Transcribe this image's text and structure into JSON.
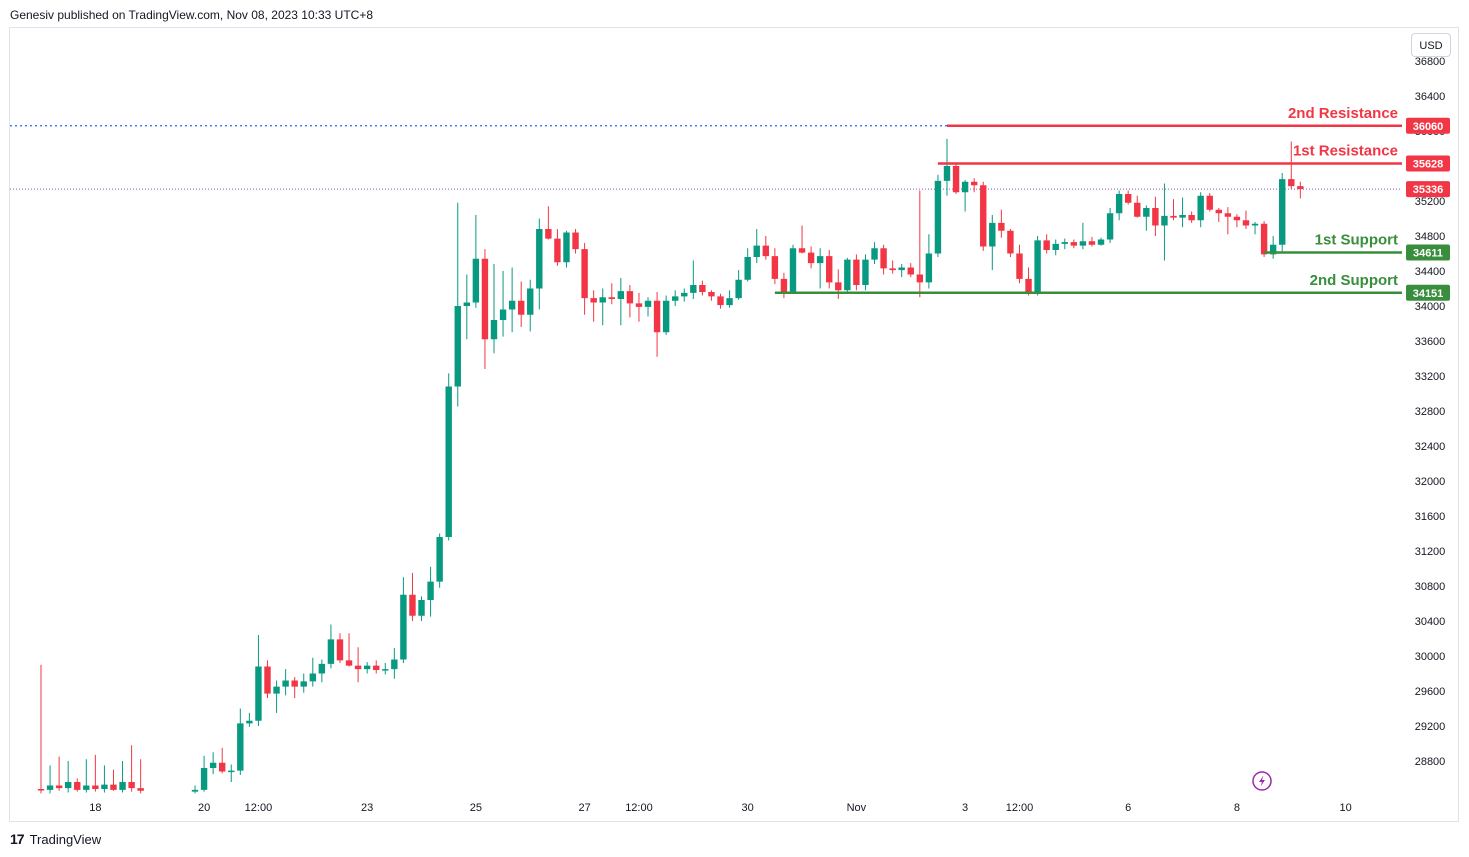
{
  "attribution": "Genesiv published on TradingView.com, Nov 08, 2023 10:33 UTC+8",
  "currency_button": "USD",
  "footer": {
    "brand": "TradingView",
    "logo_mark": "17"
  },
  "colors": {
    "up": "#089981",
    "down": "#f23645",
    "resistance": "#f23645",
    "support": "#388e3c",
    "last_price_line": "#7e57c2",
    "max_dotted_line": "#2962ff",
    "text": "#131722"
  },
  "chart_data": {
    "type": "candlestick",
    "title": "",
    "xlabel": "",
    "ylabel": "",
    "ylim": [
      28400,
      37000
    ],
    "y_ticks": [
      28800,
      29200,
      29600,
      30000,
      30400,
      30800,
      31200,
      31600,
      32000,
      32400,
      32800,
      33200,
      33600,
      34000,
      34400,
      34800,
      35200,
      35600,
      36000,
      36400,
      36800
    ],
    "x_ticks": [
      {
        "label": "18",
        "t": 6
      },
      {
        "label": "20",
        "t": 18
      },
      {
        "label": "12:00",
        "t": 24
      },
      {
        "label": "23",
        "t": 36
      },
      {
        "label": "25",
        "t": 48
      },
      {
        "label": "27",
        "t": 60
      },
      {
        "label": "12:00",
        "t": 66
      },
      {
        "label": "30",
        "t": 78
      },
      {
        "label": "Nov",
        "t": 90
      },
      {
        "label": "3",
        "t": 102
      },
      {
        "label": "12:00",
        "t": 108
      },
      {
        "label": "6",
        "t": 120
      },
      {
        "label": "8",
        "t": 132
      },
      {
        "label": "10",
        "t": 144
      }
    ],
    "candles": [
      {
        "t": 0,
        "o": 28480,
        "h": 29900,
        "l": 28430,
        "c": 28470
      },
      {
        "t": 1,
        "o": 28470,
        "h": 28750,
        "l": 28430,
        "c": 28520
      },
      {
        "t": 2,
        "o": 28520,
        "h": 28850,
        "l": 28460,
        "c": 28490
      },
      {
        "t": 3,
        "o": 28490,
        "h": 28800,
        "l": 28440,
        "c": 28560
      },
      {
        "t": 4,
        "o": 28560,
        "h": 28600,
        "l": 28450,
        "c": 28470
      },
      {
        "t": 5,
        "o": 28470,
        "h": 28820,
        "l": 28440,
        "c": 28520
      },
      {
        "t": 6,
        "o": 28520,
        "h": 28870,
        "l": 28450,
        "c": 28480
      },
      {
        "t": 7,
        "o": 28480,
        "h": 28750,
        "l": 28440,
        "c": 28530
      },
      {
        "t": 8,
        "o": 28530,
        "h": 28700,
        "l": 28460,
        "c": 28470
      },
      {
        "t": 9,
        "o": 28470,
        "h": 28800,
        "l": 28440,
        "c": 28560
      },
      {
        "t": 10,
        "o": 28560,
        "h": 28980,
        "l": 28450,
        "c": 28490
      },
      {
        "t": 11,
        "o": 28490,
        "h": 28820,
        "l": 28430,
        "c": 28460
      },
      {
        "t": 17,
        "o": 28450,
        "h": 28520,
        "l": 28430,
        "c": 28470
      },
      {
        "t": 18,
        "o": 28470,
        "h": 28860,
        "l": 28450,
        "c": 28720
      },
      {
        "t": 19,
        "o": 28720,
        "h": 28900,
        "l": 28650,
        "c": 28780
      },
      {
        "t": 20,
        "o": 28780,
        "h": 28950,
        "l": 28660,
        "c": 28680
      },
      {
        "t": 21,
        "o": 28680,
        "h": 28760,
        "l": 28560,
        "c": 28690
      },
      {
        "t": 22,
        "o": 28690,
        "h": 29400,
        "l": 28640,
        "c": 29230
      },
      {
        "t": 23,
        "o": 29230,
        "h": 29350,
        "l": 29190,
        "c": 29260
      },
      {
        "t": 24,
        "o": 29260,
        "h": 30240,
        "l": 29200,
        "c": 29880
      },
      {
        "t": 25,
        "o": 29880,
        "h": 29950,
        "l": 29520,
        "c": 29570
      },
      {
        "t": 26,
        "o": 29570,
        "h": 29720,
        "l": 29350,
        "c": 29650
      },
      {
        "t": 27,
        "o": 29650,
        "h": 29850,
        "l": 29550,
        "c": 29720
      },
      {
        "t": 28,
        "o": 29720,
        "h": 29760,
        "l": 29520,
        "c": 29650
      },
      {
        "t": 29,
        "o": 29650,
        "h": 29800,
        "l": 29580,
        "c": 29710
      },
      {
        "t": 30,
        "o": 29710,
        "h": 29980,
        "l": 29650,
        "c": 29800
      },
      {
        "t": 31,
        "o": 29800,
        "h": 29960,
        "l": 29700,
        "c": 29910
      },
      {
        "t": 32,
        "o": 29910,
        "h": 30360,
        "l": 29860,
        "c": 30190
      },
      {
        "t": 33,
        "o": 30190,
        "h": 30260,
        "l": 29920,
        "c": 29950
      },
      {
        "t": 34,
        "o": 29950,
        "h": 30260,
        "l": 29880,
        "c": 29890
      },
      {
        "t": 35,
        "o": 29890,
        "h": 30100,
        "l": 29700,
        "c": 29850
      },
      {
        "t": 36,
        "o": 29850,
        "h": 29930,
        "l": 29800,
        "c": 29890
      },
      {
        "t": 37,
        "o": 29890,
        "h": 29950,
        "l": 29800,
        "c": 29840
      },
      {
        "t": 38,
        "o": 29840,
        "h": 29920,
        "l": 29790,
        "c": 29850
      },
      {
        "t": 39,
        "o": 29850,
        "h": 30090,
        "l": 29740,
        "c": 29960
      },
      {
        "t": 40,
        "o": 29960,
        "h": 30900,
        "l": 29920,
        "c": 30700
      },
      {
        "t": 41,
        "o": 30700,
        "h": 30950,
        "l": 30400,
        "c": 30460
      },
      {
        "t": 42,
        "o": 30460,
        "h": 30680,
        "l": 30400,
        "c": 30640
      },
      {
        "t": 43,
        "o": 30640,
        "h": 31020,
        "l": 30450,
        "c": 30850
      },
      {
        "t": 44,
        "o": 30850,
        "h": 31400,
        "l": 30780,
        "c": 31360
      },
      {
        "t": 45,
        "o": 31360,
        "h": 33230,
        "l": 31320,
        "c": 33080
      },
      {
        "t": 46,
        "o": 33080,
        "h": 35180,
        "l": 32850,
        "c": 34000
      },
      {
        "t": 47,
        "o": 34000,
        "h": 34360,
        "l": 33620,
        "c": 34040
      },
      {
        "t": 48,
        "o": 34040,
        "h": 35040,
        "l": 33980,
        "c": 34540
      },
      {
        "t": 49,
        "o": 34540,
        "h": 34650,
        "l": 33280,
        "c": 33620
      },
      {
        "t": 50,
        "o": 33620,
        "h": 34480,
        "l": 33460,
        "c": 33840
      },
      {
        "t": 51,
        "o": 33840,
        "h": 34400,
        "l": 33650,
        "c": 33960
      },
      {
        "t": 52,
        "o": 33960,
        "h": 34440,
        "l": 33700,
        "c": 34060
      },
      {
        "t": 53,
        "o": 34060,
        "h": 34280,
        "l": 33760,
        "c": 33900
      },
      {
        "t": 54,
        "o": 33900,
        "h": 34300,
        "l": 33710,
        "c": 34200
      },
      {
        "t": 55,
        "o": 34200,
        "h": 35000,
        "l": 33960,
        "c": 34880
      },
      {
        "t": 56,
        "o": 34880,
        "h": 35140,
        "l": 34760,
        "c": 34770
      },
      {
        "t": 57,
        "o": 34770,
        "h": 34880,
        "l": 34460,
        "c": 34500
      },
      {
        "t": 58,
        "o": 34500,
        "h": 34860,
        "l": 34440,
        "c": 34840
      },
      {
        "t": 59,
        "o": 34840,
        "h": 34880,
        "l": 34600,
        "c": 34650
      },
      {
        "t": 60,
        "o": 34650,
        "h": 34720,
        "l": 33900,
        "c": 34090
      },
      {
        "t": 61,
        "o": 34090,
        "h": 34180,
        "l": 33820,
        "c": 34040
      },
      {
        "t": 62,
        "o": 34040,
        "h": 34200,
        "l": 33780,
        "c": 34100
      },
      {
        "t": 63,
        "o": 34100,
        "h": 34260,
        "l": 34020,
        "c": 34080
      },
      {
        "t": 64,
        "o": 34080,
        "h": 34320,
        "l": 33780,
        "c": 34170
      },
      {
        "t": 65,
        "o": 34170,
        "h": 34240,
        "l": 33870,
        "c": 34030
      },
      {
        "t": 66,
        "o": 34030,
        "h": 34150,
        "l": 33820,
        "c": 33990
      },
      {
        "t": 67,
        "o": 33990,
        "h": 34100,
        "l": 33880,
        "c": 34060
      },
      {
        "t": 68,
        "o": 34060,
        "h": 34160,
        "l": 33420,
        "c": 33700
      },
      {
        "t": 69,
        "o": 33700,
        "h": 34120,
        "l": 33670,
        "c": 34060
      },
      {
        "t": 70,
        "o": 34060,
        "h": 34180,
        "l": 34000,
        "c": 34110
      },
      {
        "t": 71,
        "o": 34110,
        "h": 34200,
        "l": 34050,
        "c": 34150
      },
      {
        "t": 72,
        "o": 34150,
        "h": 34520,
        "l": 34080,
        "c": 34240
      },
      {
        "t": 73,
        "o": 34240,
        "h": 34290,
        "l": 34120,
        "c": 34160
      },
      {
        "t": 74,
        "o": 34160,
        "h": 34180,
        "l": 34060,
        "c": 34110
      },
      {
        "t": 75,
        "o": 34110,
        "h": 34140,
        "l": 33970,
        "c": 34010
      },
      {
        "t": 76,
        "o": 34010,
        "h": 34180,
        "l": 33980,
        "c": 34090
      },
      {
        "t": 77,
        "o": 34090,
        "h": 34410,
        "l": 34070,
        "c": 34300
      },
      {
        "t": 78,
        "o": 34300,
        "h": 34660,
        "l": 34280,
        "c": 34560
      },
      {
        "t": 79,
        "o": 34560,
        "h": 34880,
        "l": 34490,
        "c": 34690
      },
      {
        "t": 80,
        "o": 34690,
        "h": 34800,
        "l": 34530,
        "c": 34570
      },
      {
        "t": 81,
        "o": 34570,
        "h": 34660,
        "l": 34250,
        "c": 34310
      },
      {
        "t": 82,
        "o": 34310,
        "h": 34380,
        "l": 34090,
        "c": 34160
      },
      {
        "t": 83,
        "o": 34160,
        "h": 34700,
        "l": 34140,
        "c": 34660
      },
      {
        "t": 84,
        "o": 34660,
        "h": 34920,
        "l": 34600,
        "c": 34610
      },
      {
        "t": 85,
        "o": 34610,
        "h": 34680,
        "l": 34430,
        "c": 34490
      },
      {
        "t": 86,
        "o": 34490,
        "h": 34660,
        "l": 34200,
        "c": 34570
      },
      {
        "t": 87,
        "o": 34570,
        "h": 34640,
        "l": 34200,
        "c": 34270
      },
      {
        "t": 88,
        "o": 34270,
        "h": 34420,
        "l": 34080,
        "c": 34180
      },
      {
        "t": 89,
        "o": 34180,
        "h": 34550,
        "l": 34140,
        "c": 34530
      },
      {
        "t": 90,
        "o": 34530,
        "h": 34590,
        "l": 34180,
        "c": 34240
      },
      {
        "t": 91,
        "o": 34240,
        "h": 34590,
        "l": 34180,
        "c": 34530
      },
      {
        "t": 92,
        "o": 34530,
        "h": 34730,
        "l": 34480,
        "c": 34660
      },
      {
        "t": 93,
        "o": 34660,
        "h": 34700,
        "l": 34360,
        "c": 34430
      },
      {
        "t": 94,
        "o": 34430,
        "h": 34520,
        "l": 34370,
        "c": 34410
      },
      {
        "t": 95,
        "o": 34410,
        "h": 34480,
        "l": 34330,
        "c": 34440
      },
      {
        "t": 96,
        "o": 34440,
        "h": 34490,
        "l": 34330,
        "c": 34360
      },
      {
        "t": 97,
        "o": 34360,
        "h": 35320,
        "l": 34100,
        "c": 34270
      },
      {
        "t": 98,
        "o": 34270,
        "h": 34820,
        "l": 34200,
        "c": 34600
      },
      {
        "t": 99,
        "o": 34600,
        "h": 35500,
        "l": 34560,
        "c": 35430
      },
      {
        "t": 100,
        "o": 35430,
        "h": 35910,
        "l": 35260,
        "c": 35600
      },
      {
        "t": 101,
        "o": 35600,
        "h": 35640,
        "l": 35280,
        "c": 35300
      },
      {
        "t": 102,
        "o": 35300,
        "h": 35440,
        "l": 35080,
        "c": 35420
      },
      {
        "t": 103,
        "o": 35420,
        "h": 35460,
        "l": 35300,
        "c": 35380
      },
      {
        "t": 104,
        "o": 35380,
        "h": 35420,
        "l": 34630,
        "c": 34680
      },
      {
        "t": 105,
        "o": 34680,
        "h": 35040,
        "l": 34410,
        "c": 34950
      },
      {
        "t": 106,
        "o": 34950,
        "h": 35100,
        "l": 34780,
        "c": 34860
      },
      {
        "t": 107,
        "o": 34860,
        "h": 34880,
        "l": 34560,
        "c": 34600
      },
      {
        "t": 108,
        "o": 34600,
        "h": 34700,
        "l": 34260,
        "c": 34310
      },
      {
        "t": 109,
        "o": 34310,
        "h": 34440,
        "l": 34120,
        "c": 34140
      },
      {
        "t": 110,
        "o": 34140,
        "h": 34800,
        "l": 34120,
        "c": 34750
      },
      {
        "t": 111,
        "o": 34750,
        "h": 34820,
        "l": 34600,
        "c": 34640
      },
      {
        "t": 112,
        "o": 34640,
        "h": 34760,
        "l": 34580,
        "c": 34710
      },
      {
        "t": 113,
        "o": 34710,
        "h": 34770,
        "l": 34650,
        "c": 34730
      },
      {
        "t": 114,
        "o": 34730,
        "h": 34760,
        "l": 34660,
        "c": 34690
      },
      {
        "t": 115,
        "o": 34690,
        "h": 34950,
        "l": 34650,
        "c": 34740
      },
      {
        "t": 116,
        "o": 34740,
        "h": 34790,
        "l": 34680,
        "c": 34700
      },
      {
        "t": 117,
        "o": 34700,
        "h": 34780,
        "l": 34690,
        "c": 34760
      },
      {
        "t": 118,
        "o": 34760,
        "h": 35120,
        "l": 34720,
        "c": 35060
      },
      {
        "t": 119,
        "o": 35060,
        "h": 35320,
        "l": 34980,
        "c": 35280
      },
      {
        "t": 120,
        "o": 35280,
        "h": 35320,
        "l": 35160,
        "c": 35180
      },
      {
        "t": 121,
        "o": 35180,
        "h": 35260,
        "l": 35010,
        "c": 35020
      },
      {
        "t": 122,
        "o": 35020,
        "h": 35150,
        "l": 34860,
        "c": 35120
      },
      {
        "t": 123,
        "o": 35120,
        "h": 35250,
        "l": 34800,
        "c": 34920
      },
      {
        "t": 124,
        "o": 34920,
        "h": 35400,
        "l": 34520,
        "c": 35030
      },
      {
        "t": 125,
        "o": 35030,
        "h": 35220,
        "l": 34980,
        "c": 35010
      },
      {
        "t": 126,
        "o": 35010,
        "h": 35240,
        "l": 34900,
        "c": 35040
      },
      {
        "t": 127,
        "o": 35040,
        "h": 35080,
        "l": 34950,
        "c": 34980
      },
      {
        "t": 128,
        "o": 34980,
        "h": 35300,
        "l": 34900,
        "c": 35260
      },
      {
        "t": 129,
        "o": 35260,
        "h": 35290,
        "l": 35080,
        "c": 35100
      },
      {
        "t": 130,
        "o": 35100,
        "h": 35120,
        "l": 34960,
        "c": 35060
      },
      {
        "t": 131,
        "o": 35060,
        "h": 35130,
        "l": 34820,
        "c": 35020
      },
      {
        "t": 132,
        "o": 35020,
        "h": 35050,
        "l": 34900,
        "c": 34980
      },
      {
        "t": 133,
        "o": 34980,
        "h": 35090,
        "l": 34880,
        "c": 34920
      },
      {
        "t": 134,
        "o": 34920,
        "h": 34960,
        "l": 34820,
        "c": 34940
      },
      {
        "t": 135,
        "o": 34940,
        "h": 34970,
        "l": 34560,
        "c": 34590
      },
      {
        "t": 136,
        "o": 34590,
        "h": 34800,
        "l": 34540,
        "c": 34700
      },
      {
        "t": 137,
        "o": 34700,
        "h": 35520,
        "l": 34620,
        "c": 35450
      },
      {
        "t": 138,
        "o": 35450,
        "h": 35880,
        "l": 35340,
        "c": 35370
      },
      {
        "t": 139,
        "o": 35370,
        "h": 35420,
        "l": 35230,
        "c": 35336
      }
    ],
    "levels": [
      {
        "name": "2nd Resistance",
        "value": 36060,
        "tag": "36060",
        "kind": "resistance",
        "t_start": 100
      },
      {
        "name": "1st Resistance",
        "value": 35628,
        "tag": "35628",
        "kind": "resistance",
        "t_start": 99
      },
      {
        "name": "1st Support",
        "value": 34611,
        "tag": "34611",
        "kind": "support",
        "t_start": 135
      },
      {
        "name": "2nd Support",
        "value": 34151,
        "tag": "34151",
        "kind": "support",
        "t_start": 81
      }
    ],
    "last_price": {
      "value": 35336,
      "tag": "35336"
    },
    "high_marker": {
      "value": 36060
    }
  }
}
